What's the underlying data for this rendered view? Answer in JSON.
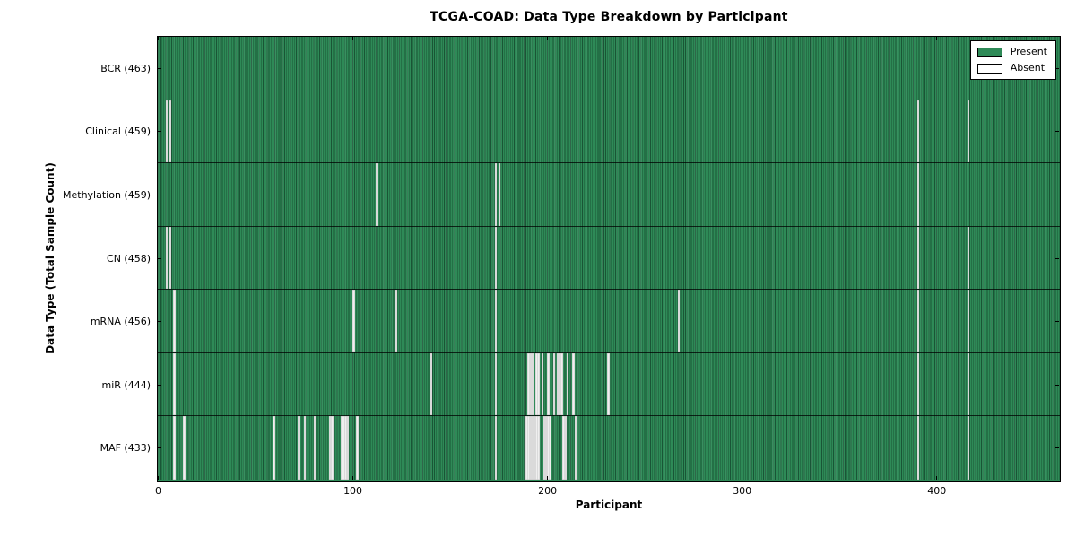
{
  "title": "TCGA-COAD: Data Type Breakdown by Participant",
  "axes": {
    "xlabel": "Participant",
    "ylabel": "Data Type (Total Sample Count)"
  },
  "legend": {
    "present_label": "Present",
    "absent_label": "Absent"
  },
  "colors": {
    "present_fill": "#2e8a57",
    "present_edge": "#1d5c3a",
    "absent_fill": "#efefef",
    "plot_border": "#000000",
    "legend_bg": "#ffffff",
    "text": "#000000"
  },
  "chart_data": {
    "type": "heatmap",
    "title": "TCGA-COAD: Data Type Breakdown by Participant",
    "xlabel": "Participant",
    "ylabel": "Data Type (Total Sample Count)",
    "xlim": [
      0,
      463
    ],
    "x_ticks": [
      0,
      100,
      200,
      300,
      400
    ],
    "n_participants": 463,
    "grid": false,
    "legend_position": "upper right",
    "legend_entries": [
      {
        "label": "Present",
        "color": "#2e8a57"
      },
      {
        "label": "Absent",
        "color": "#ffffff"
      }
    ],
    "rows": [
      {
        "data_type": "BCR",
        "total": 463,
        "label": "BCR (463)",
        "absent": []
      },
      {
        "data_type": "Clinical",
        "total": 459,
        "label": "Clinical (459)",
        "absent": [
          4,
          6,
          390,
          416
        ]
      },
      {
        "data_type": "Methylation",
        "total": 459,
        "label": "Methylation (459)",
        "absent": [
          112,
          173,
          175,
          390
        ]
      },
      {
        "data_type": "CN",
        "total": 458,
        "label": "CN (458)",
        "absent": [
          4,
          6,
          173,
          390,
          416
        ]
      },
      {
        "data_type": "mRNA",
        "total": 456,
        "label": "mRNA (456)",
        "absent": [
          8,
          100,
          122,
          173,
          267,
          390,
          416
        ]
      },
      {
        "data_type": "miR",
        "total": 444,
        "label": "miR (444)",
        "absent": [
          8,
          140,
          173,
          190,
          191,
          192,
          194,
          195,
          197,
          200,
          203,
          205,
          206,
          207,
          210,
          213,
          231,
          390,
          416
        ]
      },
      {
        "data_type": "MAF",
        "total": 433,
        "label": "MAF (433)",
        "absent": [
          8,
          13,
          59,
          72,
          75,
          80,
          88,
          89,
          94,
          95,
          96,
          97,
          102,
          173,
          189,
          190,
          191,
          192,
          193,
          194,
          195,
          198,
          199,
          200,
          201,
          208,
          209,
          214,
          390,
          416
        ]
      }
    ]
  }
}
